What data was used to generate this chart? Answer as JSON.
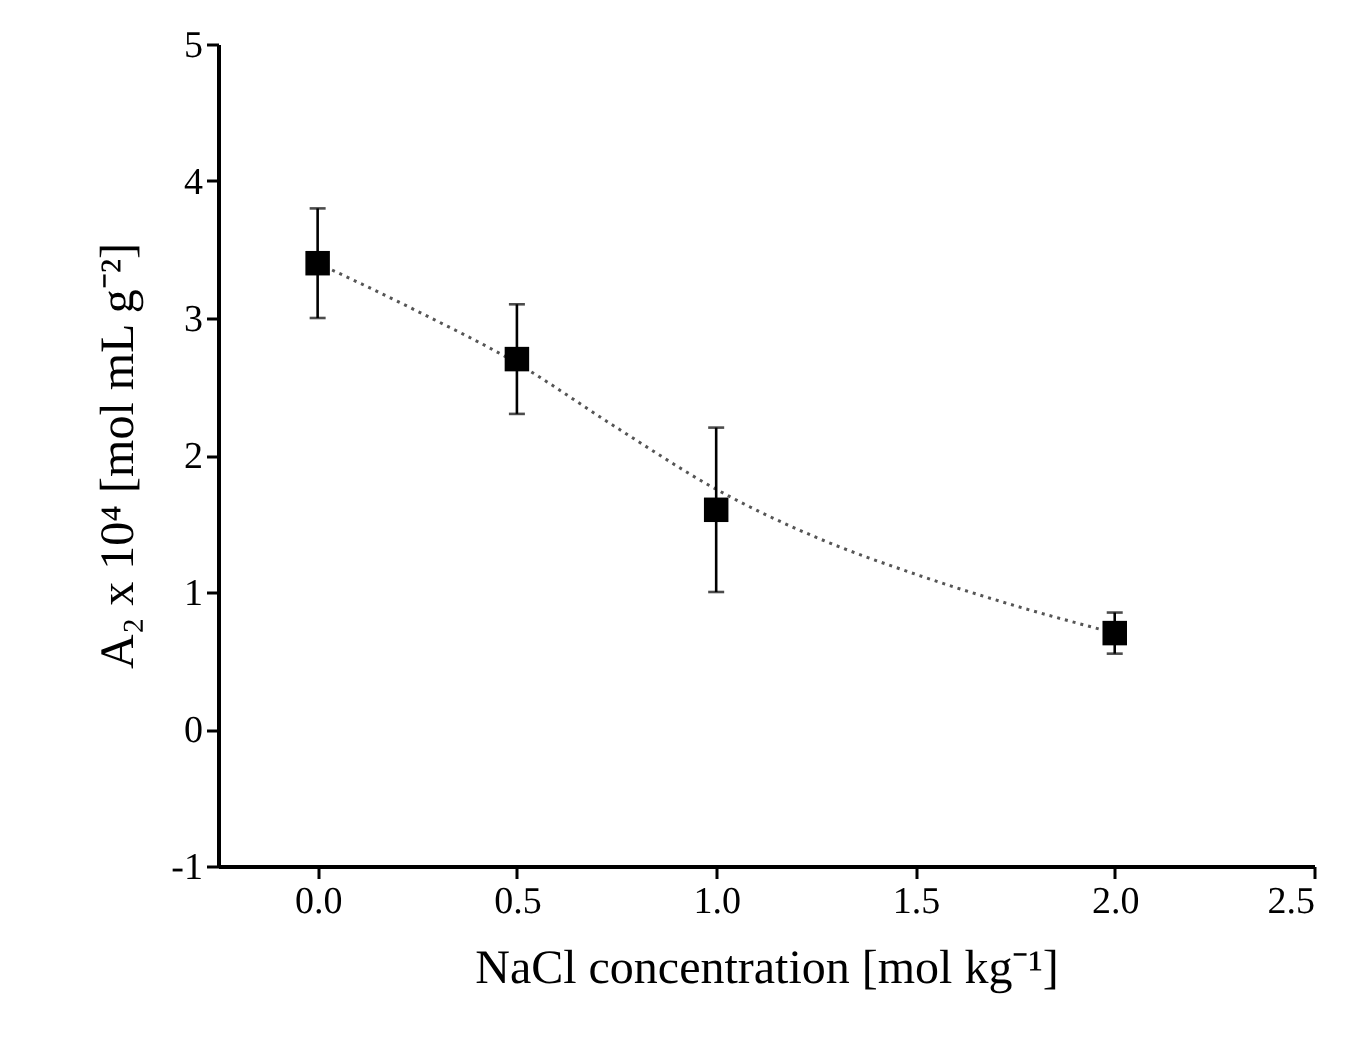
{
  "chart_data": {
    "type": "scatter",
    "xlabel": "NaCl concentration [mol kg⁻¹]",
    "ylabel": "A₂ x 10⁴ [mol mL g⁻²]",
    "xlim": [
      -0.25,
      2.5
    ],
    "xticks": [
      {
        "value": 0,
        "label": "0.0"
      },
      {
        "value": 0.5,
        "label": "0.5"
      },
      {
        "value": 1,
        "label": "1.0"
      },
      {
        "value": 1.5,
        "label": "1.5"
      },
      {
        "value": 2,
        "label": "2.0"
      },
      {
        "value": 2.5,
        "label": "2.5"
      }
    ],
    "ylim": [
      -1,
      5
    ],
    "yticks": [
      -1,
      0,
      1,
      2,
      3,
      4,
      5
    ],
    "grid": false,
    "x": [
      0,
      0.5,
      1,
      2
    ],
    "series": [
      {
        "color": "#000000",
        "marker": "square",
        "values": [
          3.4,
          2.7,
          1.6,
          0.7
        ],
        "errors": [
          0.4,
          0.4,
          0.6,
          0.15
        ]
      },
      {
        "type": "line",
        "color": "#555555",
        "line_style": "dotted",
        "marker": "none",
        "x": [
          0,
          0.25,
          0.5,
          0.75,
          1,
          1.25,
          1.5,
          1.75,
          2
        ],
        "values": [
          3.4,
          3.05,
          2.67,
          2.2,
          1.75,
          1.4,
          1.13,
          0.9,
          0.7
        ]
      }
    ]
  }
}
